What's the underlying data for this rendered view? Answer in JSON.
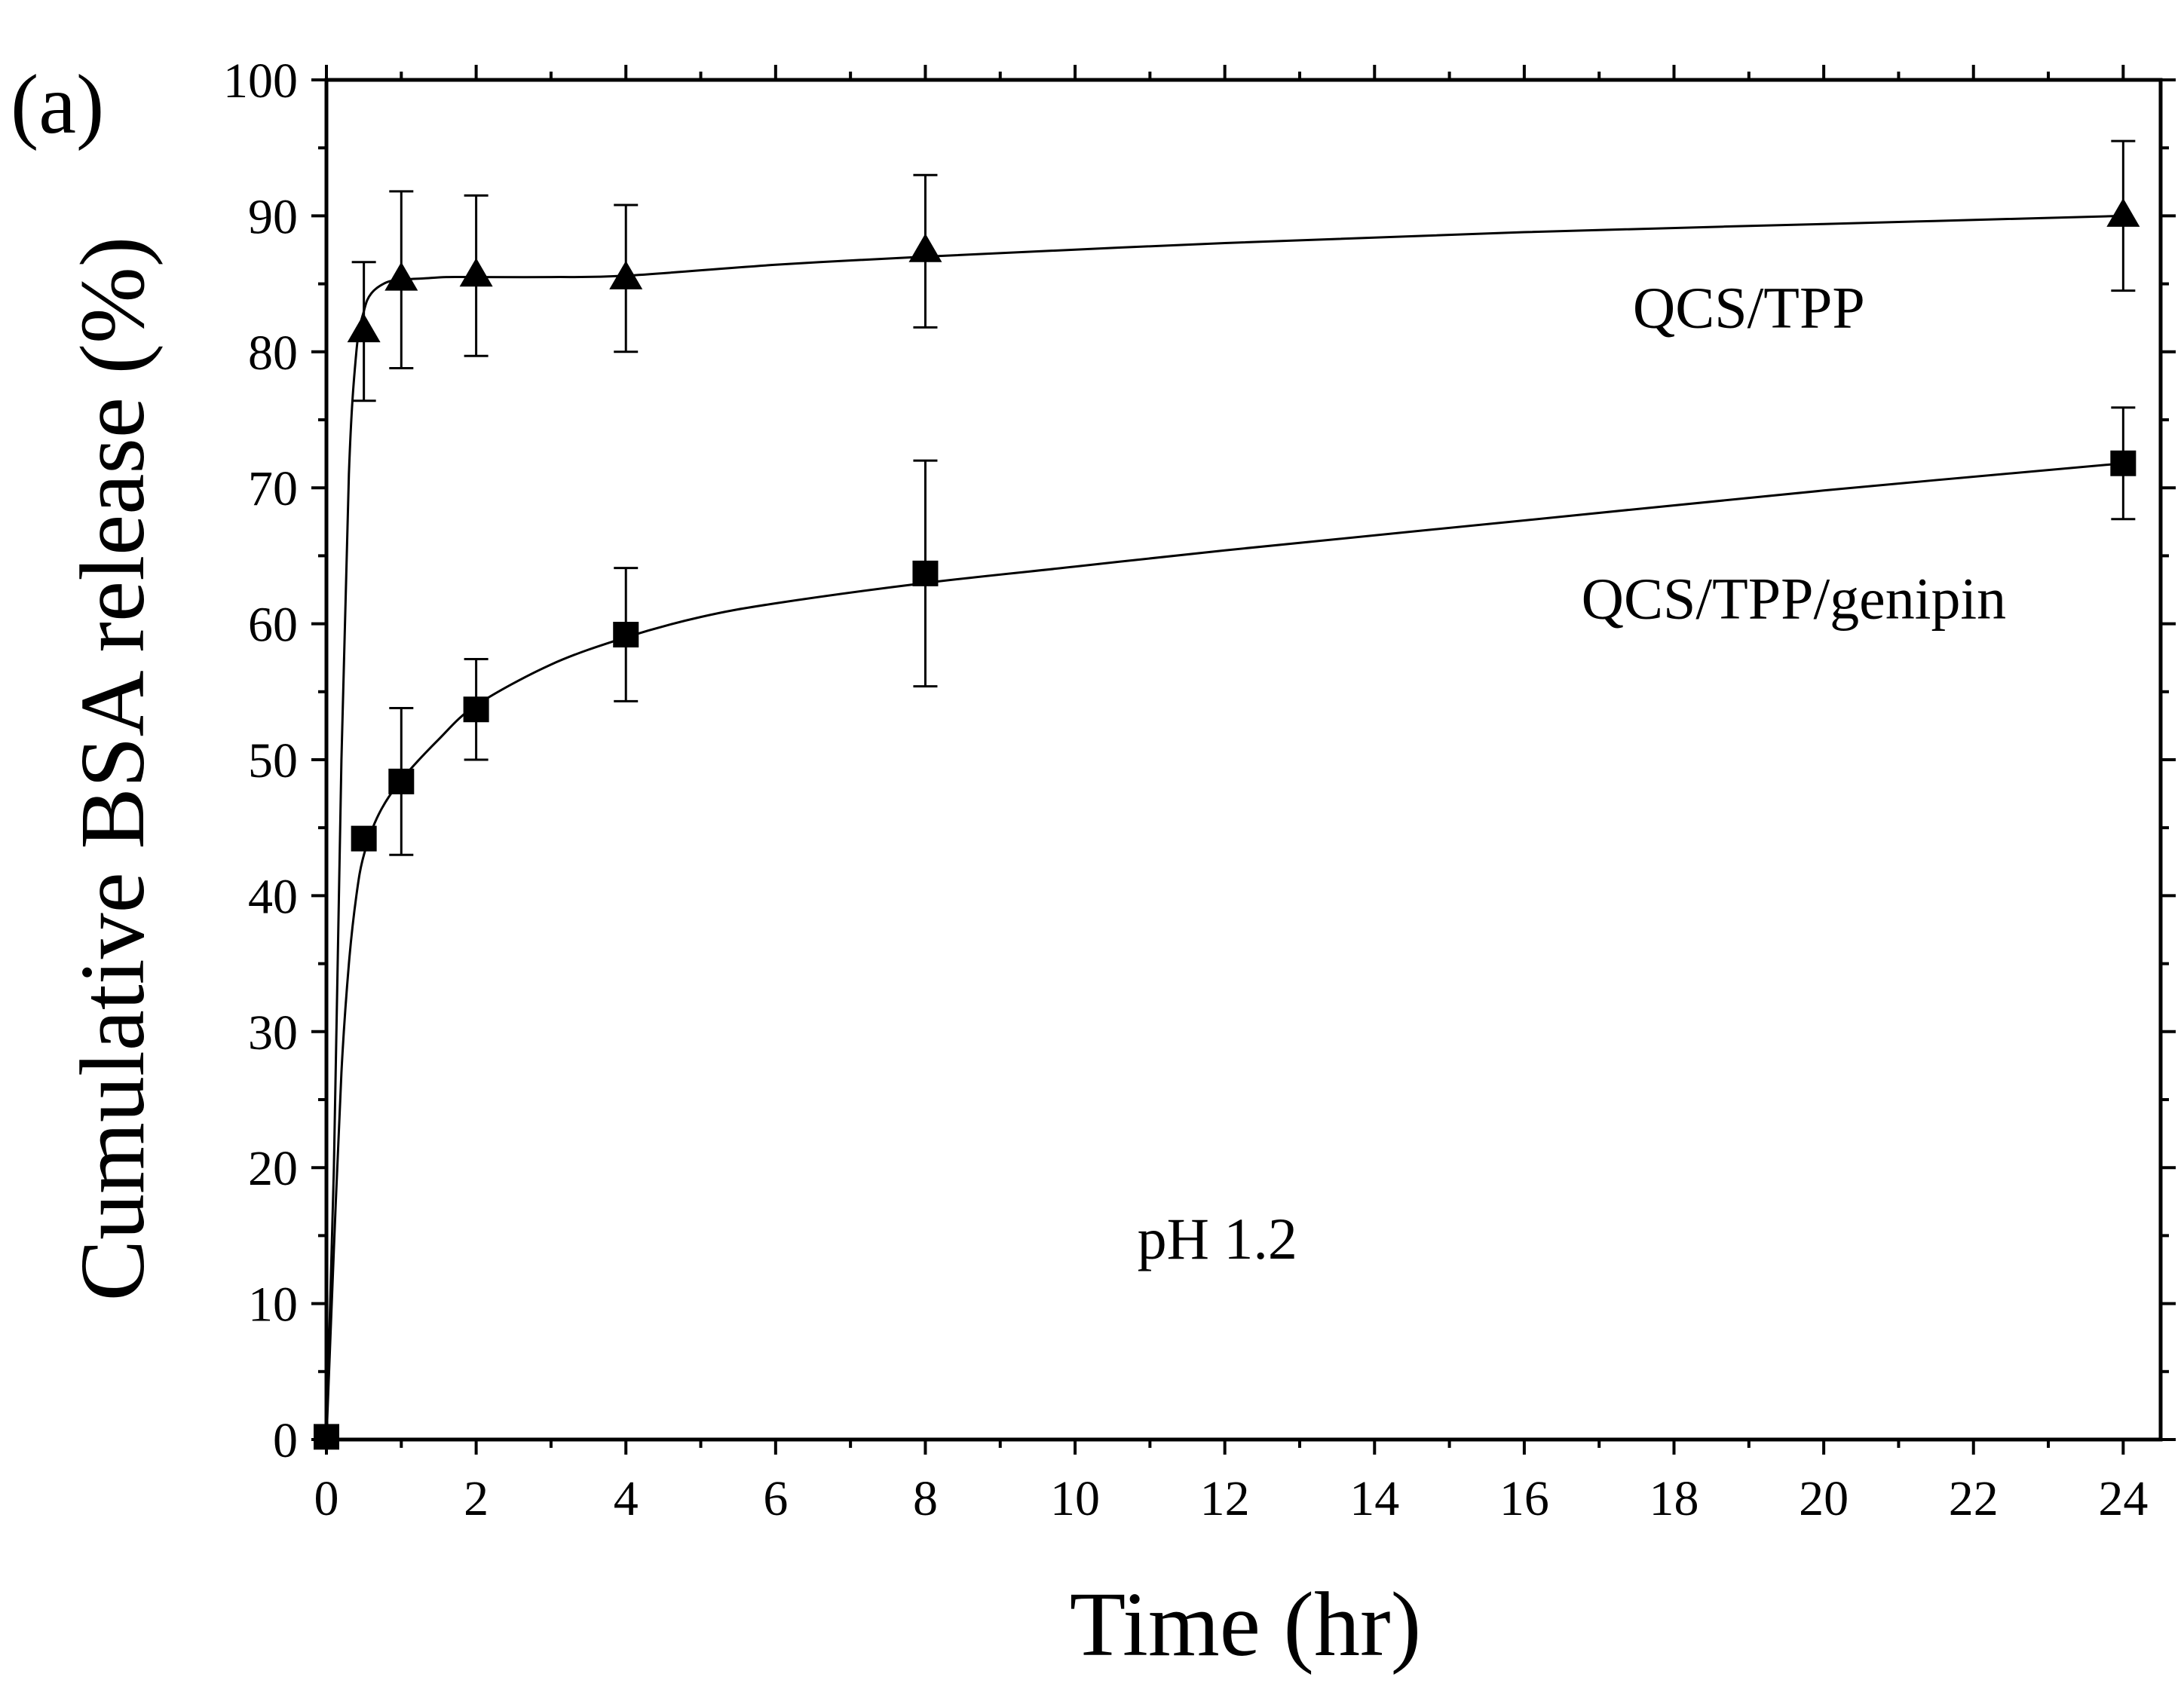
{
  "chart_data": {
    "type": "scatter",
    "panel_label": "(a)",
    "title": "",
    "xlabel": "Time (hr)",
    "ylabel": "Cumulative BSA release (%)",
    "xlim": [
      0,
      24.5
    ],
    "ylim": [
      0,
      100
    ],
    "xticks": [
      0,
      2,
      4,
      6,
      8,
      10,
      12,
      14,
      16,
      18,
      20,
      22,
      24
    ],
    "yticks": [
      0,
      10,
      20,
      30,
      40,
      50,
      60,
      70,
      80,
      90,
      100
    ],
    "xtick_labels": [
      "0",
      "2",
      "4",
      "6",
      "8",
      "10",
      "12",
      "14",
      "16",
      "18",
      "20",
      "22",
      "24"
    ],
    "ytick_labels": [
      "0",
      "10",
      "20",
      "30",
      "40",
      "50",
      "60",
      "70",
      "80",
      "90",
      "100"
    ],
    "series": [
      {
        "name": "QCS/TPP",
        "marker": "triangle",
        "x": [
          0.5,
          1,
          2,
          4,
          8,
          24
        ],
        "y": [
          81.5,
          85.3,
          85.6,
          85.4,
          87.4,
          90.0
        ],
        "err": [
          5.1,
          6.5,
          5.9,
          5.4,
          5.6,
          5.5
        ],
        "fit_x": [
          0,
          0.1,
          0.2,
          0.3,
          0.4,
          0.5,
          0.6,
          0.8,
          1.0,
          1.3,
          1.6,
          2,
          3,
          4,
          6,
          8,
          12,
          16,
          20,
          24
        ],
        "fit_y": [
          0,
          20,
          50,
          71,
          80,
          83,
          84.3,
          85.1,
          85.3,
          85.4,
          85.5,
          85.5,
          85.5,
          85.6,
          86.4,
          87.0,
          88.0,
          88.8,
          89.4,
          90.0
        ]
      },
      {
        "name": "QCS/TPP/genipin",
        "marker": "square",
        "x": [
          0,
          0.5,
          1,
          2,
          4,
          8,
          24
        ],
        "y": [
          0.2,
          44.2,
          48.4,
          53.7,
          59.2,
          63.7,
          71.8
        ],
        "err": [
          0,
          0,
          5.4,
          3.7,
          4.9,
          8.3,
          4.1
        ],
        "fit_x": [
          0,
          0.1,
          0.2,
          0.3,
          0.4,
          0.5,
          0.7,
          1,
          1.5,
          2,
          3,
          4,
          5,
          6,
          8,
          10,
          12,
          16,
          20,
          24
        ],
        "fit_y": [
          0,
          14,
          27,
          35,
          40,
          43,
          46,
          48.5,
          51.5,
          54,
          57,
          59,
          60.5,
          61.5,
          63,
          64.2,
          65.4,
          67.6,
          69.8,
          71.8
        ]
      }
    ],
    "annotations": [
      {
        "text": "QCS/TPP",
        "x": 19.0,
        "y": 81.8
      },
      {
        "text": "QCS/TPP/genipin",
        "x": 19.6,
        "y": 60.4
      },
      {
        "text": "pH 1.2",
        "x": 11.9,
        "y": 13.3
      }
    ]
  }
}
